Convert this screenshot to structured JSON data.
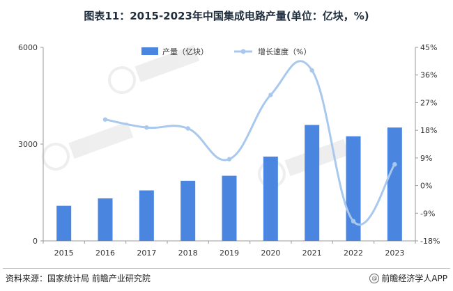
{
  "title": "图表11：2015-2023年中国集成电路产量(单位：亿块，%)",
  "chart_data": {
    "type": "bar+line",
    "categories": [
      "2015",
      "2016",
      "2017",
      "2018",
      "2019",
      "2020",
      "2021",
      "2022",
      "2023"
    ],
    "series": [
      {
        "name": "产量（亿块）",
        "type": "bar",
        "axis": "left",
        "color": "#4a86e0",
        "values": [
          1087,
          1318,
          1565,
          1860,
          2018,
          2614,
          3594,
          3242,
          3514
        ]
      },
      {
        "name": "增长速度（%）",
        "type": "line",
        "axis": "right",
        "color": "#a9c8ee",
        "values": [
          21.5,
          18.9,
          18.6,
          8.6,
          29.5,
          37.5,
          -11.6,
          6.9
        ],
        "x": [
          "2016",
          "2017",
          "2018",
          "2019",
          "2020",
          "2021",
          "2022",
          "2023"
        ]
      }
    ],
    "y_left": {
      "ticks": [
        0,
        3000,
        6000
      ],
      "range": [
        0,
        6000
      ]
    },
    "y_right": {
      "ticks": [
        "45%",
        "36%",
        "27%",
        "18%",
        "9%",
        "0%",
        "-9%",
        "-18%"
      ],
      "range": [
        -18,
        45
      ]
    },
    "legend": "top-center",
    "grid": false
  },
  "source": "资料来源：国家统计局 前瞻产业研究院",
  "brand": {
    "icon": "@",
    "text": "前瞻经济学人APP"
  }
}
